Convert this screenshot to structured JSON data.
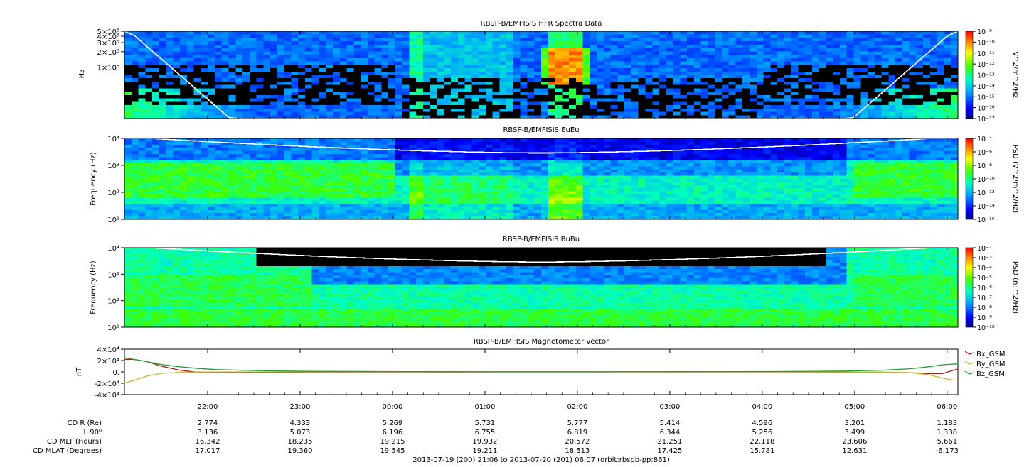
{
  "chart_data": [
    {
      "type": "heatmap",
      "title": "RBSP-B/EMFISIS  HFR Spectra Data",
      "ylabel": "Hz",
      "yscale": "log",
      "ylim": [
        10000,
        500000
      ],
      "yticks": [
        {
          "label": "5×10⁵",
          "value": 500000
        },
        {
          "label": "4×10⁵",
          "value": 400000
        },
        {
          "label": "3×10⁵",
          "value": 300000
        },
        {
          "label": "2×10⁵",
          "value": 200000
        },
        {
          "label": "1×10⁵",
          "value": 100000
        }
      ],
      "colorbar": {
        "label": "V^2/m^2/Hz",
        "ticks": [
          "10⁻⁹",
          "10⁻¹⁰",
          "10⁻¹¹",
          "10⁻¹²",
          "10⁻¹³",
          "10⁻¹⁴",
          "10⁻¹⁵",
          "10⁻¹⁶",
          "10⁻¹⁷"
        ],
        "range": [
          -17,
          -9
        ]
      },
      "white_line": "electron cyclotron frequency (rising to edges)"
    },
    {
      "type": "heatmap",
      "title": "RBSP-B/EMFISIS  EuEu",
      "ylabel": "Frequency (Hz)",
      "yscale": "log",
      "ylim": [
        10,
        10000
      ],
      "yticks": [
        {
          "label": "10⁴",
          "value": 10000
        },
        {
          "label": "10³",
          "value": 1000
        },
        {
          "label": "10²",
          "value": 100
        },
        {
          "label": "10¹",
          "value": 10
        }
      ],
      "colorbar": {
        "label": "PSD (V^2/m^2/Hz)",
        "ticks": [
          "10⁻⁴",
          "10⁻⁶",
          "10⁻⁸",
          "10⁻¹⁰",
          "10⁻¹²",
          "10⁻¹⁴",
          "10⁻¹⁶"
        ],
        "range": [
          -16,
          -4
        ]
      }
    },
    {
      "type": "heatmap",
      "title": "RBSP-B/EMFISIS  BuBu",
      "ylabel": "Frequency (Hz)",
      "yscale": "log",
      "ylim": [
        10,
        10000
      ],
      "yticks": [
        {
          "label": "10⁴",
          "value": 10000
        },
        {
          "label": "10³",
          "value": 1000
        },
        {
          "label": "10²",
          "value": 100
        },
        {
          "label": "10¹",
          "value": 10
        }
      ],
      "colorbar": {
        "label": "PSD (nT^2/Hz)",
        "ticks": [
          "10⁻²",
          "10⁻³",
          "10⁻⁴",
          "10⁻⁵",
          "10⁻⁶",
          "10⁻⁷",
          "10⁻⁸",
          "10⁻⁹",
          "10⁻¹⁰"
        ],
        "range": [
          -10,
          -2
        ]
      }
    },
    {
      "type": "line",
      "title": "RBSP-B/EMFISIS  Magnetometer vector",
      "ylabel": "nT",
      "ylim": [
        -40000,
        40000
      ],
      "yticks": [
        {
          "label": "4×10⁴",
          "value": 40000
        },
        {
          "label": "2×10⁴",
          "value": 20000
        },
        {
          "label": "0.",
          "value": 0
        },
        {
          "label": "-2×10⁴",
          "value": -20000
        },
        {
          "label": "-4×10⁴",
          "value": -40000
        }
      ],
      "x_hours": [
        0,
        0.1,
        0.25,
        0.4,
        0.6,
        0.8,
        1.0,
        1.5,
        2.0,
        3.0,
        4.0,
        5.0,
        6.0,
        7.0,
        7.8,
        8.2,
        8.5,
        8.7,
        8.85,
        8.95,
        9.02
      ],
      "series": [
        {
          "name": "Bx_GSM",
          "color": "#a01818",
          "values": [
            22000,
            22000,
            18000,
            10000,
            3000,
            -800,
            -1500,
            -800,
            -300,
            -100,
            0,
            0,
            0,
            0,
            -200,
            -500,
            -1500,
            -3000,
            -3000,
            2000,
            5000
          ]
        },
        {
          "name": "By_GSM",
          "color": "#c8b428",
          "values": [
            -20000,
            -15000,
            -7000,
            -2500,
            -800,
            -300,
            -100,
            0,
            0,
            0,
            0,
            0,
            0,
            0,
            -100,
            -400,
            -1200,
            -5000,
            -11000,
            -14000,
            -14500
          ]
        },
        {
          "name": "Bz_GSM",
          "color": "#20a030",
          "values": [
            25000,
            22000,
            18000,
            13000,
            9000,
            6000,
            4000,
            2000,
            1000,
            500,
            300,
            300,
            400,
            600,
            1500,
            3000,
            5500,
            9000,
            12500,
            13500,
            14000
          ]
        }
      ]
    }
  ],
  "time_axis": {
    "ticks": [
      "22:00",
      "23:00",
      "00:00",
      "01:00",
      "02:00",
      "03:00",
      "04:00",
      "05:00",
      "06:00"
    ],
    "tick_hours": [
      0.9,
      1.9,
      2.9,
      3.9,
      4.9,
      5.9,
      6.9,
      7.9,
      8.9
    ],
    "total_hours": 9.0167
  },
  "ephemeris": {
    "labels": [
      "CD R (Re)",
      "L 90⁰",
      "CD MLT (Hours)",
      "CD MLAT (Degrees)"
    ],
    "rows": [
      [
        "2.774",
        "4.333",
        "5.269",
        "5.731",
        "5.777",
        "5.414",
        "4.596",
        "3.201",
        "1.183"
      ],
      [
        "3.136",
        "5.073",
        "6.196",
        "6.755",
        "6.819",
        "6.344",
        "5.256",
        "3.499",
        "1.338"
      ],
      [
        "16.342",
        "18.235",
        "19.215",
        "19.932",
        "20.572",
        "21.251",
        "22.118",
        "23.606",
        "5.661"
      ],
      [
        "17.017",
        "19.360",
        "19.545",
        "19.211",
        "18.513",
        "17.425",
        "15.781",
        "12.631",
        "-6.173"
      ]
    ]
  },
  "footer": "2013-07-19 (200) 21:06 to 2013-07-20 (201) 06:07 (orbit:rbspb-pp:861)"
}
